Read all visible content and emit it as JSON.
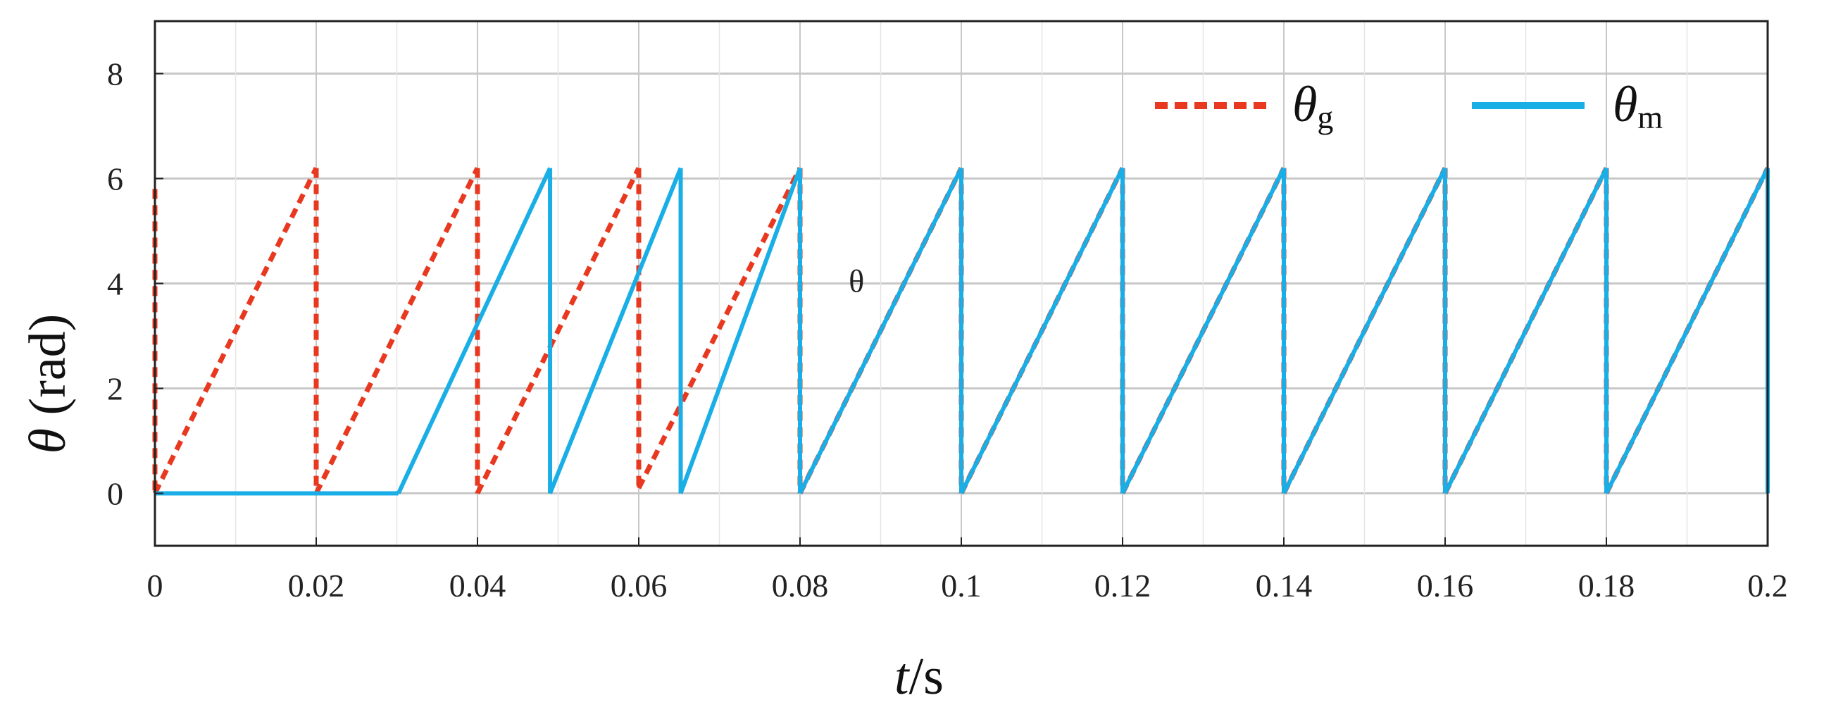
{
  "chart_data": {
    "type": "line",
    "xlabel_italic": "t",
    "xlabel_unit": "/s",
    "ylabel_symbol": "θ",
    "ylabel_unit": " (rad)",
    "xlim": [
      0,
      0.2
    ],
    "ylim": [
      -1,
      9
    ],
    "grid": true,
    "legend_position": "top-right",
    "x_ticks": [
      0,
      0.02,
      0.04,
      0.06,
      0.08,
      0.1,
      0.12,
      0.14,
      0.16,
      0.18,
      0.2
    ],
    "x_tick_labels": [
      "0",
      "0.02",
      "0.04",
      "0.06",
      "0.08",
      "0.1",
      "0.12",
      "0.14",
      "0.16",
      "0.18",
      "0.2"
    ],
    "y_ticks": [
      0,
      2,
      4,
      6,
      8
    ],
    "y_tick_labels": [
      "0",
      "2",
      "4",
      "6",
      "8"
    ],
    "annotations": [
      {
        "text": "θ",
        "x": 0.087,
        "y": 4.0
      }
    ],
    "series": [
      {
        "symbol": "θ",
        "subscript": "g",
        "color": "#e8381f",
        "style": "dashed",
        "points": [
          [
            0,
            5.8
          ],
          [
            0,
            0
          ],
          [
            0.02,
            6.2
          ],
          [
            0.02,
            0
          ],
          [
            0.04,
            6.2
          ],
          [
            0.04,
            0
          ],
          [
            0.06,
            6.2
          ],
          [
            0.06,
            0.1
          ],
          [
            0.08,
            6.2
          ],
          [
            0.08,
            0
          ],
          [
            0.1,
            6.2
          ],
          [
            0.1,
            0
          ],
          [
            0.12,
            6.2
          ],
          [
            0.12,
            0
          ],
          [
            0.14,
            6.2
          ],
          [
            0.14,
            0
          ],
          [
            0.16,
            6.2
          ],
          [
            0.16,
            0
          ],
          [
            0.18,
            6.2
          ],
          [
            0.18,
            0
          ],
          [
            0.2,
            6.2
          ]
        ]
      },
      {
        "symbol": "θ",
        "subscript": "m",
        "color": "#19aee6",
        "style": "solid",
        "points": [
          [
            0,
            0
          ],
          [
            0.0302,
            0
          ],
          [
            0.049,
            6.2
          ],
          [
            0.049,
            0
          ],
          [
            0.0652,
            6.2
          ],
          [
            0.0652,
            0
          ],
          [
            0.08,
            6.2
          ],
          [
            0.08,
            0
          ],
          [
            0.1,
            6.2
          ],
          [
            0.1,
            0
          ],
          [
            0.12,
            6.2
          ],
          [
            0.12,
            0
          ],
          [
            0.14,
            6.2
          ],
          [
            0.14,
            0
          ],
          [
            0.16,
            6.2
          ],
          [
            0.16,
            0
          ],
          [
            0.18,
            6.2
          ],
          [
            0.18,
            0
          ],
          [
            0.2,
            6.2
          ],
          [
            0.2,
            0
          ]
        ]
      }
    ]
  }
}
